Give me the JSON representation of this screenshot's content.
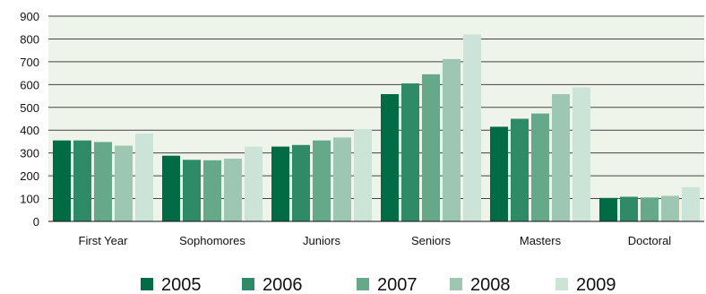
{
  "chart_data": {
    "type": "bar",
    "title": "",
    "xlabel": "",
    "ylabel": "",
    "ylim": [
      0,
      900
    ],
    "yticks": [
      0,
      100,
      200,
      300,
      400,
      500,
      600,
      700,
      800,
      900
    ],
    "grid": true,
    "legend_position": "bottom",
    "categories": [
      "First Year",
      "Sophomores",
      "Juniors",
      "Seniors",
      "Masters",
      "Doctoral"
    ],
    "series": [
      {
        "name": "2005",
        "color": "#006b45",
        "values": [
          355,
          288,
          328,
          558,
          415,
          103
        ]
      },
      {
        "name": "2006",
        "color": "#2f8b67",
        "values": [
          355,
          270,
          335,
          605,
          450,
          108
        ]
      },
      {
        "name": "2007",
        "color": "#65a88a",
        "values": [
          348,
          268,
          355,
          645,
          473,
          105
        ]
      },
      {
        "name": "2008",
        "color": "#9dc7b2",
        "values": [
          332,
          275,
          368,
          712,
          558,
          112
        ]
      },
      {
        "name": "2009",
        "color": "#cce3d7",
        "values": [
          385,
          328,
          405,
          820,
          588,
          150
        ]
      }
    ],
    "colors": {
      "plot_background": "#eef4ea",
      "grid": "#444444",
      "axis": "#111111"
    }
  }
}
